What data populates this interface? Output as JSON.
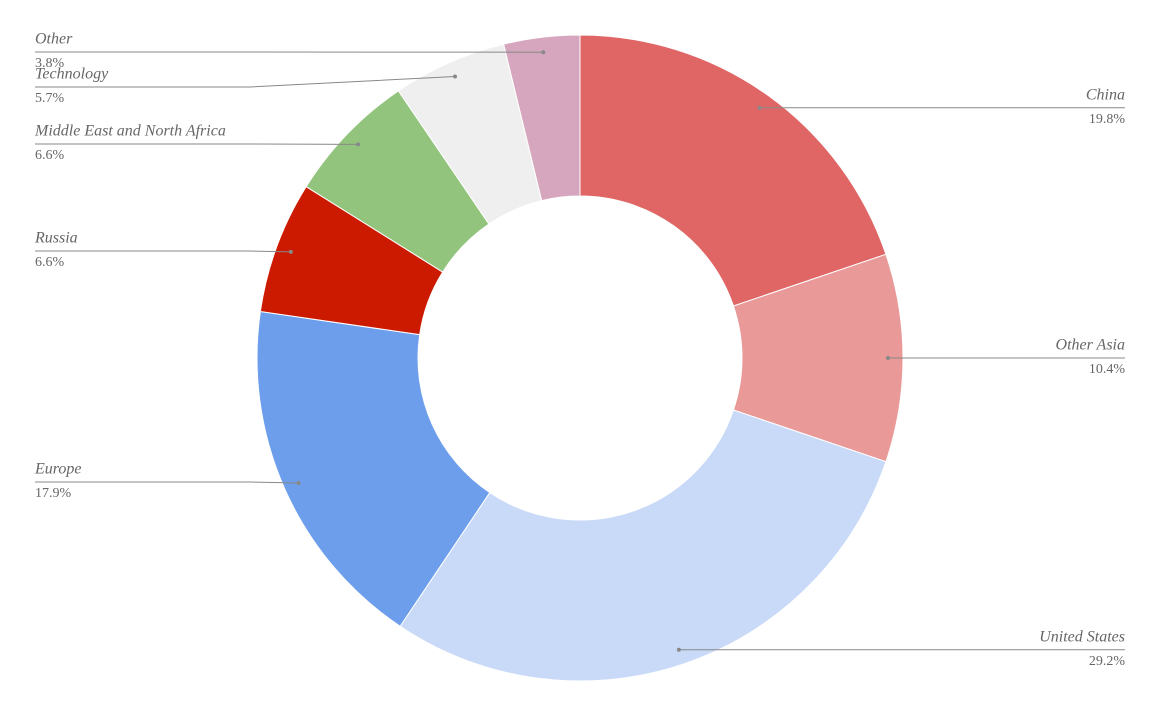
{
  "chart_data": {
    "type": "donut",
    "categories": [
      "China",
      "Other Asia",
      "United States",
      "Europe",
      "Russia",
      "Middle East and North Africa",
      "Technology",
      "Other"
    ],
    "values": [
      19.8,
      10.4,
      29.2,
      17.9,
      6.6,
      6.6,
      5.7,
      3.8
    ],
    "value_labels": [
      "19.8%",
      "10.4%",
      "29.2%",
      "17.9%",
      "6.6%",
      "6.6%",
      "5.7%",
      "3.8%"
    ],
    "colors": [
      "#e06666",
      "#ea9999",
      "#c9daf8",
      "#6d9eeb",
      "#cc1a00",
      "#93c47d",
      "#efefef",
      "#d5a6bd"
    ]
  }
}
